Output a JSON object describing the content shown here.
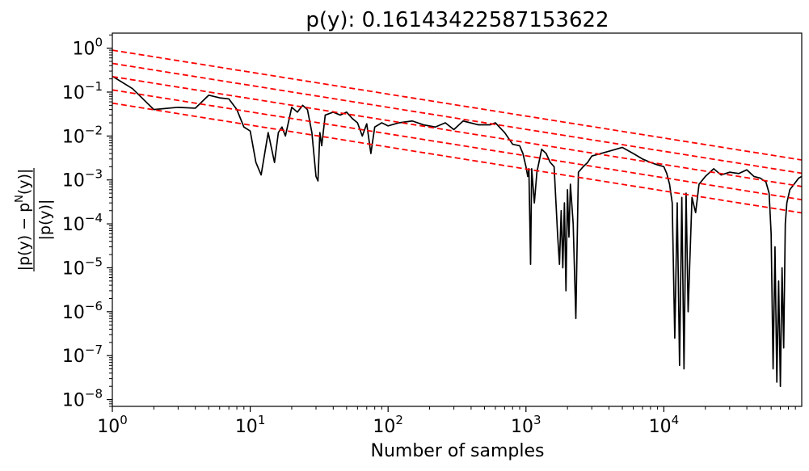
{
  "chart_data": {
    "type": "line",
    "title": "p(y): 0.16143422587153622",
    "xlabel": "Number of samples",
    "ylabel_parts": {
      "numerator": "|p(y) − p",
      "numerator_sup": "N",
      "numerator_tail": "(y)|",
      "denominator": "|p(y)|"
    },
    "xscale": "log",
    "yscale": "log",
    "xlim": [
      1,
      100000
    ],
    "ylim": [
      7e-09,
      2.2
    ],
    "grid": false,
    "x_ticks": [
      {
        "value": 1,
        "base": "10",
        "exp": "0"
      },
      {
        "value": 10,
        "base": "10",
        "exp": "1"
      },
      {
        "value": 100,
        "base": "10",
        "exp": "2"
      },
      {
        "value": 1000,
        "base": "10",
        "exp": "3"
      },
      {
        "value": 10000,
        "base": "10",
        "exp": "4"
      }
    ],
    "y_ticks": [
      {
        "value": 1e-08,
        "base": "10",
        "exp": "−8"
      },
      {
        "value": 1e-07,
        "base": "10",
        "exp": "−7"
      },
      {
        "value": 1e-06,
        "base": "10",
        "exp": "−6"
      },
      {
        "value": 1e-05,
        "base": "10",
        "exp": "−5"
      },
      {
        "value": 0.0001,
        "base": "10",
        "exp": "−4"
      },
      {
        "value": 0.001,
        "base": "10",
        "exp": "−3"
      },
      {
        "value": 0.01,
        "base": "10",
        "exp": "−2"
      },
      {
        "value": 0.1,
        "base": "10",
        "exp": "−1"
      },
      {
        "value": 1,
        "base": "10",
        "exp": "0"
      }
    ],
    "series": [
      {
        "color": "#000000",
        "style": "solid",
        "points": [
          [
            1,
            0.23
          ],
          [
            1.4,
            0.12
          ],
          [
            2,
            0.04
          ],
          [
            3,
            0.045
          ],
          [
            4,
            0.043
          ],
          [
            5,
            0.085
          ],
          [
            6,
            0.074
          ],
          [
            7,
            0.07
          ],
          [
            8,
            0.04
          ],
          [
            9,
            0.016
          ],
          [
            10,
            0.013
          ],
          [
            11,
            0.0025
          ],
          [
            12,
            0.0013
          ],
          [
            13.5,
            0.012
          ],
          [
            15,
            0.0025
          ],
          [
            16,
            0.012
          ],
          [
            17,
            0.016
          ],
          [
            18,
            0.01
          ],
          [
            20,
            0.045
          ],
          [
            22,
            0.035
          ],
          [
            24,
            0.05
          ],
          [
            26,
            0.04
          ],
          [
            28,
            0.012
          ],
          [
            30,
            0.0012
          ],
          [
            31,
            0.00095
          ],
          [
            32,
            0.012
          ],
          [
            33,
            0.006
          ],
          [
            35,
            0.03
          ],
          [
            40,
            0.035
          ],
          [
            45,
            0.03
          ],
          [
            50,
            0.035
          ],
          [
            55,
            0.025
          ],
          [
            60,
            0.02
          ],
          [
            65,
            0.01
          ],
          [
            70,
            0.019
          ],
          [
            75,
            0.004
          ],
          [
            80,
            0.016
          ],
          [
            90,
            0.02
          ],
          [
            100,
            0.017
          ],
          [
            120,
            0.02
          ],
          [
            150,
            0.022
          ],
          [
            180,
            0.018
          ],
          [
            220,
            0.016
          ],
          [
            260,
            0.02
          ],
          [
            300,
            0.014
          ],
          [
            350,
            0.022
          ],
          [
            450,
            0.018
          ],
          [
            550,
            0.018
          ],
          [
            600,
            0.02
          ],
          [
            700,
            0.012
          ],
          [
            800,
            0.0065
          ],
          [
            900,
            0.006
          ],
          [
            950,
            0.004
          ],
          [
            1000,
            0.002
          ],
          [
            1030,
            0.0012
          ],
          [
            1050,
            0.0018
          ],
          [
            1080,
            1.2e-05
          ],
          [
            1100,
            0.0018
          ],
          [
            1150,
            0.0003
          ],
          [
            1200,
            0.0015
          ],
          [
            1300,
            0.005
          ],
          [
            1400,
            0.004
          ],
          [
            1500,
            0.0025
          ],
          [
            1600,
            0.002
          ],
          [
            1700,
            5e-05
          ],
          [
            1750,
            1.2e-05
          ],
          [
            1800,
            0.0002
          ],
          [
            1850,
            1e-05
          ],
          [
            1900,
            0.0003
          ],
          [
            1950,
            3e-06
          ],
          [
            2000,
            0.0006
          ],
          [
            2050,
            5e-05
          ],
          [
            2100,
            0.0008
          ],
          [
            2200,
            0.0001
          ],
          [
            2300,
            7e-07
          ],
          [
            2400,
            0.0015
          ],
          [
            2600,
            0.002
          ],
          [
            2800,
            0.0025
          ],
          [
            3000,
            0.0035
          ],
          [
            3500,
            0.004
          ],
          [
            4000,
            0.0045
          ],
          [
            5000,
            0.0055
          ],
          [
            6000,
            0.004
          ],
          [
            7000,
            0.003
          ],
          [
            8000,
            0.0025
          ],
          [
            9000,
            0.0022
          ],
          [
            10000,
            0.002
          ],
          [
            10500,
            0.0014
          ],
          [
            11000,
            0.0008
          ],
          [
            11500,
            0.0003
          ],
          [
            12000,
            2.5e-07
          ],
          [
            12500,
            0.0003
          ],
          [
            13000,
            6e-08
          ],
          [
            13500,
            0.0004
          ],
          [
            14000,
            5e-08
          ],
          [
            14500,
            0.0005
          ],
          [
            15000,
            1e-06
          ],
          [
            16000,
            0.0004
          ],
          [
            17000,
            0.00018
          ],
          [
            18000,
            0.0008
          ],
          [
            20000,
            0.0012
          ],
          [
            23000,
            0.0018
          ],
          [
            26000,
            0.0013
          ],
          [
            30000,
            0.0015
          ],
          [
            35000,
            0.0014
          ],
          [
            40000,
            0.0017
          ],
          [
            45000,
            0.0012
          ],
          [
            50000,
            0.0011
          ],
          [
            55000,
            0.0009
          ],
          [
            58000,
            0.0005
          ],
          [
            60000,
            6e-05
          ],
          [
            62000,
            5e-08
          ],
          [
            64000,
            3e-05
          ],
          [
            66000,
            2.5e-08
          ],
          [
            68000,
            5e-06
          ],
          [
            70000,
            2e-08
          ],
          [
            72000,
            1e-05
          ],
          [
            74000,
            1.5e-07
          ],
          [
            76000,
            0.0001
          ],
          [
            78000,
            0.0003
          ],
          [
            82000,
            0.0006
          ],
          [
            88000,
            0.0008
          ],
          [
            95000,
            0.0011
          ],
          [
            100000,
            0.0012
          ]
        ]
      },
      {
        "color": "#ff0000",
        "style": "dashed",
        "points": [
          [
            1,
            0.9
          ],
          [
            100000,
            0.00285
          ]
        ]
      },
      {
        "color": "#ff0000",
        "style": "dashed",
        "points": [
          [
            1,
            0.45
          ],
          [
            100000,
            0.00142
          ]
        ]
      },
      {
        "color": "#ff0000",
        "style": "dashed",
        "points": [
          [
            1,
            0.225
          ],
          [
            100000,
            0.00071
          ]
        ]
      },
      {
        "color": "#ff0000",
        "style": "dashed",
        "points": [
          [
            1,
            0.112
          ],
          [
            100000,
            0.000355
          ]
        ]
      },
      {
        "color": "#ff0000",
        "style": "dashed",
        "points": [
          [
            1,
            0.056
          ],
          [
            100000,
            0.000178
          ]
        ]
      }
    ]
  }
}
